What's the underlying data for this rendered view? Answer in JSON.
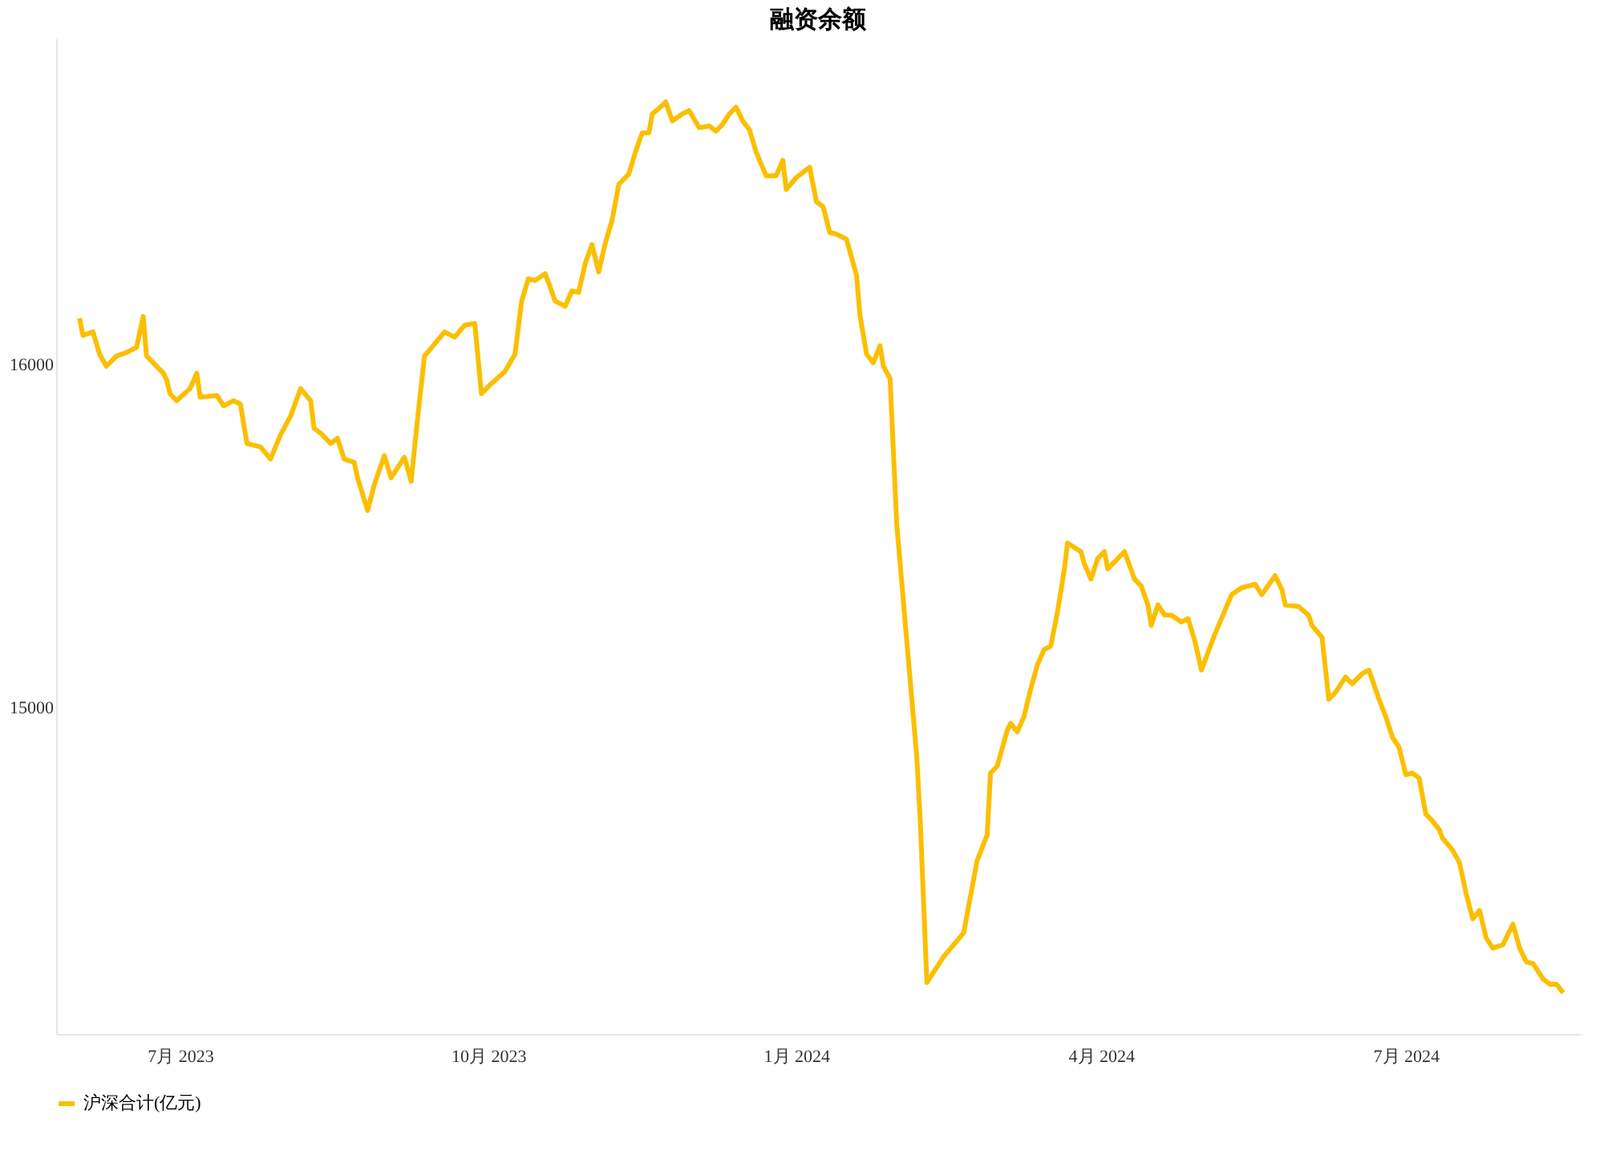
{
  "chart_data": {
    "type": "line",
    "title": "融资余额",
    "x": [
      "2023-06-01",
      "2023-06-02",
      "2023-06-05",
      "2023-06-07",
      "2023-06-09",
      "2023-06-12",
      "2023-06-15",
      "2023-06-18",
      "2023-06-20",
      "2023-06-21",
      "2023-06-26",
      "2023-06-27",
      "2023-06-28",
      "2023-06-30",
      "2023-07-04",
      "2023-07-06",
      "2023-07-07",
      "2023-07-12",
      "2023-07-14",
      "2023-07-17",
      "2023-07-19",
      "2023-07-21",
      "2023-07-25",
      "2023-07-28",
      "2023-07-31",
      "2023-08-03",
      "2023-08-06",
      "2023-08-09",
      "2023-08-10",
      "2023-08-12",
      "2023-08-15",
      "2023-08-17",
      "2023-08-19",
      "2023-08-22",
      "2023-08-23",
      "2023-08-26",
      "2023-08-28",
      "2023-08-31",
      "2023-09-02",
      "2023-09-04",
      "2023-09-06",
      "2023-09-08",
      "2023-09-10",
      "2023-09-12",
      "2023-09-15",
      "2023-09-18",
      "2023-09-21",
      "2023-09-24",
      "2023-09-27",
      "2023-09-29",
      "2023-10-02",
      "2023-10-06",
      "2023-10-09",
      "2023-10-11",
      "2023-10-13",
      "2023-10-15",
      "2023-10-18",
      "2023-10-19",
      "2023-10-21",
      "2023-10-24",
      "2023-10-26",
      "2023-10-28",
      "2023-10-30",
      "2023-11-01",
      "2023-11-03",
      "2023-11-05",
      "2023-11-07",
      "2023-11-09",
      "2023-11-10",
      "2023-11-12",
      "2023-11-14",
      "2023-11-16",
      "2023-11-18",
      "2023-11-19",
      "2023-11-22",
      "2023-11-23",
      "2023-11-25",
      "2023-11-28",
      "2023-11-30",
      "2023-12-03",
      "2023-12-06",
      "2023-12-08",
      "2023-12-10",
      "2023-12-12",
      "2023-12-14",
      "2023-12-16",
      "2023-12-18",
      "2023-12-20",
      "2023-12-23",
      "2023-12-26",
      "2023-12-28",
      "2023-12-29",
      "2024-01-01",
      "2024-01-03",
      "2024-01-05",
      "2024-01-07",
      "2024-01-09",
      "2024-01-11",
      "2024-01-13",
      "2024-01-16",
      "2024-01-19",
      "2024-01-20",
      "2024-01-22",
      "2024-01-24",
      "2024-01-26",
      "2024-01-27",
      "2024-01-29",
      "2024-01-31",
      "2024-02-03",
      "2024-02-06",
      "2024-02-07",
      "2024-02-09",
      "2024-02-14",
      "2024-02-20",
      "2024-02-24",
      "2024-02-27",
      "2024-02-28",
      "2024-03-01",
      "2024-03-04",
      "2024-03-05",
      "2024-03-07",
      "2024-03-09",
      "2024-03-11",
      "2024-03-13",
      "2024-03-15",
      "2024-03-17",
      "2024-03-19",
      "2024-03-21",
      "2024-03-22",
      "2024-03-26",
      "2024-03-27",
      "2024-03-29",
      "2024-03-31",
      "2024-04-02",
      "2024-04-03",
      "2024-04-06",
      "2024-04-08",
      "2024-04-11",
      "2024-04-13",
      "2024-04-15",
      "2024-04-16",
      "2024-04-18",
      "2024-04-20",
      "2024-04-22",
      "2024-04-25",
      "2024-04-27",
      "2024-04-29",
      "2024-05-01",
      "2024-05-05",
      "2024-05-10",
      "2024-05-13",
      "2024-05-15",
      "2024-05-17",
      "2024-05-19",
      "2024-05-23",
      "2024-05-25",
      "2024-05-26",
      "2024-05-30",
      "2024-06-02",
      "2024-06-03",
      "2024-06-06",
      "2024-06-08",
      "2024-06-10",
      "2024-06-13",
      "2024-06-15",
      "2024-06-18",
      "2024-06-20",
      "2024-06-23",
      "2024-06-25",
      "2024-06-27",
      "2024-06-29",
      "2024-07-01",
      "2024-07-03",
      "2024-07-05",
      "2024-07-07",
      "2024-07-09",
      "2024-07-11",
      "2024-07-12",
      "2024-07-15",
      "2024-07-17",
      "2024-07-19",
      "2024-07-21",
      "2024-07-23",
      "2024-07-25",
      "2024-07-27",
      "2024-07-30",
      "2024-08-02",
      "2024-08-04",
      "2024-08-06",
      "2024-08-08",
      "2024-08-11",
      "2024-08-13",
      "2024-08-15",
      "2024-08-17"
    ],
    "series": [
      {
        "name": "沪深合计(亿元)",
        "color": "#fbbf00",
        "values": [
          16135,
          16085,
          16095,
          16030,
          15995,
          16025,
          16035,
          16050,
          16140,
          16025,
          15975,
          15955,
          15915,
          15895,
          15930,
          15975,
          15905,
          15910,
          15880,
          15895,
          15885,
          15770,
          15760,
          15725,
          15795,
          15850,
          15930,
          15895,
          15815,
          15800,
          15770,
          15785,
          15725,
          15715,
          15670,
          15575,
          15650,
          15735,
          15670,
          15700,
          15730,
          15660,
          15850,
          16025,
          16060,
          16095,
          16080,
          16115,
          16120,
          15915,
          15945,
          15980,
          16030,
          16185,
          16250,
          16245,
          16265,
          16240,
          16185,
          16170,
          16215,
          16210,
          16295,
          16350,
          16270,
          16355,
          16420,
          16525,
          16535,
          16555,
          16620,
          16675,
          16675,
          16730,
          16755,
          16765,
          16710,
          16730,
          16740,
          16690,
          16695,
          16680,
          16700,
          16730,
          16750,
          16710,
          16685,
          16620,
          16550,
          16550,
          16595,
          16510,
          16545,
          16560,
          16575,
          16475,
          16460,
          16385,
          16380,
          16365,
          16260,
          16145,
          16030,
          16005,
          16055,
          15995,
          15960,
          15535,
          15195,
          14855,
          14675,
          14200,
          14275,
          14345,
          14555,
          14630,
          14810,
          14830,
          14935,
          14955,
          14930,
          14975,
          15055,
          15125,
          15170,
          15180,
          15280,
          15400,
          15480,
          15455,
          15420,
          15375,
          15435,
          15455,
          15405,
          15435,
          15455,
          15375,
          15355,
          15300,
          15240,
          15300,
          15270,
          15270,
          15250,
          15260,
          15195,
          15110,
          15215,
          15330,
          15350,
          15355,
          15360,
          15330,
          15385,
          15345,
          15300,
          15295,
          15270,
          15240,
          15205,
          15025,
          15045,
          15090,
          15070,
          15100,
          15110,
          15025,
          14975,
          14915,
          14885,
          14805,
          14810,
          14795,
          14690,
          14670,
          14645,
          14620,
          14585,
          14550,
          14460,
          14385,
          14410,
          14330,
          14300,
          14310,
          14370,
          14300,
          14260,
          14255,
          14210,
          14195,
          14195,
          14170
        ]
      }
    ],
    "xticks": [
      {
        "value": "2023-07-01",
        "label": "7月 2023"
      },
      {
        "value": "2023-10-01",
        "label": "10月 2023"
      },
      {
        "value": "2024-01-01",
        "label": "1月 2024"
      },
      {
        "value": "2024-04-01",
        "label": "4月 2024"
      },
      {
        "value": "2024-07-01",
        "label": "7月 2024"
      }
    ],
    "xlim": [
      "2023-05-25",
      "2024-08-22"
    ],
    "ylim": [
      14050,
      16950
    ],
    "yticks": [
      15000,
      16000
    ],
    "grid": false,
    "legend": "bottom",
    "line_style": "solid",
    "marker": "none"
  }
}
